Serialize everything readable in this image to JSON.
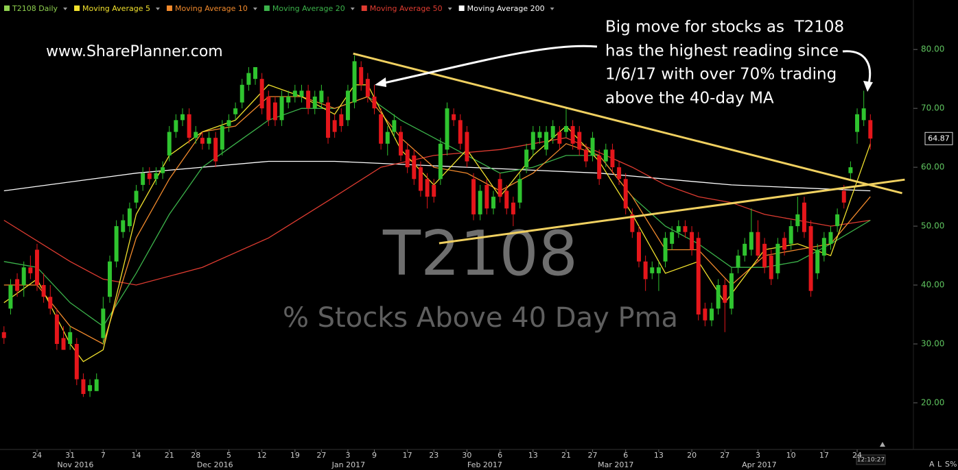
{
  "chart_data": {
    "type": "candlestick",
    "title": "T2108",
    "subtitle": "% Stocks Above 40 Day Pma",
    "website": "www.SharePlanner.com",
    "annotation": [
      "Big move for stocks as  T2108",
      "has the highest reading since",
      "1/6/17 with over 70% trading",
      "above the 40-day MA"
    ],
    "name": "T2108 Daily",
    "color": "#8fd14f",
    "up_color": "#2fc42f",
    "down_color": "#e5161b",
    "candles": [
      [
        32,
        33,
        30,
        31
      ],
      [
        36,
        41,
        35,
        40
      ],
      [
        41,
        42,
        38,
        39
      ],
      [
        40,
        44,
        38,
        43
      ],
      [
        43,
        45,
        41,
        42
      ],
      [
        46,
        47,
        39,
        40
      ],
      [
        40,
        42,
        37,
        38
      ],
      [
        38,
        40,
        35,
        36
      ],
      [
        35,
        36,
        29,
        30
      ],
      [
        31,
        33,
        29,
        29
      ],
      [
        30,
        33,
        29,
        32
      ],
      [
        30,
        31,
        23,
        24
      ],
      [
        24,
        25,
        21,
        21.5
      ],
      [
        22,
        24,
        21,
        23
      ],
      [
        22,
        25,
        22,
        24
      ],
      [
        31,
        38,
        30,
        36
      ],
      [
        38,
        45,
        37,
        44
      ],
      [
        44,
        51,
        43,
        50
      ],
      [
        49,
        52,
        48,
        51
      ],
      [
        50,
        54,
        49,
        53
      ],
      [
        54,
        57,
        53,
        56
      ],
      [
        57,
        60,
        56,
        59
      ],
      [
        59,
        60,
        57,
        58
      ],
      [
        58,
        60,
        57,
        59
      ],
      [
        59,
        61,
        58,
        60
      ],
      [
        62,
        67,
        61,
        66
      ],
      [
        66,
        69,
        65,
        68
      ],
      [
        68,
        70,
        67,
        69
      ],
      [
        69,
        70,
        64,
        65
      ],
      [
        65,
        67,
        64,
        66
      ],
      [
        65,
        66,
        63,
        64
      ],
      [
        64,
        66,
        63,
        65
      ],
      [
        65,
        66,
        60,
        61
      ],
      [
        63,
        68,
        62,
        67
      ],
      [
        67,
        69,
        66,
        68
      ],
      [
        69,
        71,
        68,
        70
      ],
      [
        71,
        75,
        70,
        74
      ],
      [
        74,
        77,
        73,
        76
      ],
      [
        75,
        77,
        74,
        77
      ],
      [
        75,
        76,
        69,
        70
      ],
      [
        72,
        73,
        67,
        68
      ],
      [
        71,
        72,
        67,
        68
      ],
      [
        68,
        73,
        67,
        72
      ],
      [
        71,
        73,
        70,
        72
      ],
      [
        72,
        74,
        71,
        73
      ],
      [
        72,
        74,
        71,
        73
      ],
      [
        73,
        74,
        69,
        70
      ],
      [
        70,
        73,
        69,
        72
      ],
      [
        71,
        74,
        70,
        73
      ],
      [
        71,
        72,
        64,
        65
      ],
      [
        68,
        69,
        65,
        66
      ],
      [
        69,
        70,
        66,
        67
      ],
      [
        68,
        74,
        67,
        73
      ],
      [
        71,
        79,
        70,
        78
      ],
      [
        77,
        78,
        73,
        74
      ],
      [
        75,
        76,
        71,
        72
      ],
      [
        72,
        74,
        69,
        70
      ],
      [
        69,
        70,
        63,
        64
      ],
      [
        64,
        67,
        62,
        66
      ],
      [
        66,
        69,
        65,
        68
      ],
      [
        66,
        67,
        61,
        62
      ],
      [
        63,
        64,
        59,
        60
      ],
      [
        62,
        63,
        57,
        58
      ],
      [
        60,
        61,
        55,
        56
      ],
      [
        58,
        59,
        53,
        55
      ],
      [
        57,
        58,
        54,
        55
      ],
      [
        58,
        65,
        57,
        64
      ],
      [
        63,
        71,
        62,
        70
      ],
      [
        69,
        70,
        67,
        68
      ],
      [
        68,
        69,
        63,
        64
      ],
      [
        66,
        67,
        60,
        61
      ],
      [
        58,
        59,
        51,
        52
      ],
      [
        52,
        57,
        51,
        56
      ],
      [
        57,
        58,
        52,
        53
      ],
      [
        53,
        56,
        52,
        55
      ],
      [
        58,
        59,
        54,
        55
      ],
      [
        56,
        57,
        52,
        53
      ],
      [
        54,
        55,
        50,
        52
      ],
      [
        54,
        59,
        53,
        58
      ],
      [
        60,
        64,
        59,
        63
      ],
      [
        63,
        67,
        62,
        66
      ],
      [
        65,
        67,
        64,
        66
      ],
      [
        63,
        67,
        62,
        66
      ],
      [
        65,
        68,
        64,
        67
      ],
      [
        66,
        67,
        63,
        64
      ],
      [
        66,
        70,
        65,
        67
      ],
      [
        67,
        68,
        63,
        64
      ],
      [
        66,
        67,
        62,
        63
      ],
      [
        63,
        64,
        60,
        61
      ],
      [
        62,
        66,
        61,
        65
      ],
      [
        62,
        63,
        57,
        58
      ],
      [
        61,
        64,
        60,
        63
      ],
      [
        63,
        64,
        59,
        60
      ],
      [
        60,
        61,
        57,
        58
      ],
      [
        58,
        59,
        52,
        53
      ],
      [
        52,
        53,
        48,
        49
      ],
      [
        49,
        50,
        43,
        44
      ],
      [
        44,
        45,
        39,
        41
      ],
      [
        42,
        44,
        41,
        43
      ],
      [
        42,
        44,
        39,
        43
      ],
      [
        44,
        49,
        43,
        48
      ],
      [
        47,
        50,
        46,
        49
      ],
      [
        49,
        51,
        48,
        50
      ],
      [
        50,
        51,
        48,
        49
      ],
      [
        49,
        50,
        45,
        46
      ],
      [
        48,
        49,
        34,
        35
      ],
      [
        36,
        37,
        33,
        34
      ],
      [
        34,
        37,
        33,
        36
      ],
      [
        36,
        41,
        35,
        40
      ],
      [
        40,
        41,
        32,
        37
      ],
      [
        36,
        43,
        35,
        42
      ],
      [
        43,
        46,
        42,
        45
      ],
      [
        45,
        48,
        44,
        47
      ],
      [
        46,
        53,
        45,
        49
      ],
      [
        49,
        51,
        44,
        45
      ],
      [
        47,
        48,
        42,
        43
      ],
      [
        45,
        46,
        40,
        41
      ],
      [
        42,
        48,
        41,
        47
      ],
      [
        48,
        49,
        45,
        46
      ],
      [
        47,
        51,
        46,
        50
      ],
      [
        50,
        55,
        49,
        52
      ],
      [
        54,
        55,
        48,
        49
      ],
      [
        50,
        51,
        38,
        39
      ],
      [
        42,
        47,
        41,
        46
      ],
      [
        45,
        49,
        44,
        48
      ],
      [
        47,
        50,
        46,
        49
      ],
      [
        50,
        53,
        49,
        52
      ],
      [
        56,
        57,
        53,
        54
      ],
      [
        59,
        61,
        58,
        60
      ],
      [
        66,
        70,
        64,
        69
      ],
      [
        68,
        73,
        67,
        70
      ],
      [
        68,
        69,
        63,
        64.87
      ]
    ],
    "series": [
      {
        "name": "Moving Average 5",
        "color": "#f2e22d",
        "x": [
          0,
          5,
          10,
          12,
          15,
          20,
          25,
          30,
          35,
          40,
          45,
          50,
          53,
          55,
          60,
          65,
          70,
          75,
          80,
          85,
          90,
          95,
          100,
          105,
          109,
          115,
          120,
          125,
          131
        ],
        "values": [
          37,
          41,
          30,
          27,
          29,
          52,
          62,
          66,
          68,
          74,
          72,
          69,
          74,
          74,
          63,
          57,
          63,
          55,
          62,
          67,
          61,
          52,
          42,
          44,
          37,
          46,
          47,
          45,
          64
        ]
      },
      {
        "name": "Moving Average 10",
        "color": "#f28a2c",
        "x": [
          0,
          5,
          10,
          15,
          20,
          25,
          30,
          35,
          40,
          45,
          50,
          55,
          60,
          65,
          70,
          75,
          80,
          85,
          90,
          95,
          100,
          105,
          110,
          115,
          120,
          125,
          131
        ],
        "values": [
          40,
          40,
          33,
          30,
          48,
          58,
          66,
          67,
          72,
          72,
          70,
          72,
          65,
          60,
          59,
          56,
          59,
          64,
          62,
          55,
          46,
          46,
          40,
          45,
          46,
          47,
          55
        ]
      },
      {
        "name": "Moving Average 20",
        "color": "#3cb44b",
        "x": [
          0,
          5,
          10,
          15,
          20,
          25,
          30,
          35,
          40,
          45,
          50,
          55,
          60,
          65,
          70,
          75,
          80,
          85,
          90,
          95,
          100,
          105,
          110,
          115,
          120,
          125,
          131
        ],
        "values": [
          44,
          43,
          37,
          33,
          42,
          52,
          60,
          64,
          68,
          70,
          70,
          72,
          68,
          65,
          62,
          59,
          60,
          62,
          62,
          55,
          50,
          47,
          43,
          43,
          44,
          47,
          51
        ]
      },
      {
        "name": "Moving Average 50",
        "color": "#e03c31",
        "x": [
          0,
          10,
          15,
          20,
          30,
          40,
          50,
          57,
          65,
          75,
          85,
          95,
          100,
          105,
          110,
          115,
          120,
          125,
          131
        ],
        "values": [
          51,
          44,
          41,
          40,
          43,
          48,
          55,
          60,
          62,
          63,
          65,
          60,
          57,
          55,
          54,
          52,
          51,
          50,
          51
        ]
      },
      {
        "name": "Moving Average 200",
        "color": "#ffffff",
        "x": [
          0,
          20,
          40,
          50,
          70,
          90,
          110,
          131
        ],
        "values": [
          56,
          59,
          61,
          61,
          60,
          59,
          57,
          56
        ]
      }
    ],
    "trendlines": [
      {
        "color": "#f0d060",
        "x": [
          52.8,
          135.8
        ],
        "values": [
          79.3,
          55.6
        ]
      },
      {
        "color": "#f0d060",
        "x": [
          65.8,
          136.2
        ],
        "values": [
          47.1,
          57.9
        ]
      }
    ],
    "xlim": [
      -0.6,
      137.4
    ],
    "ylim": [
      12.2,
      88.4
    ],
    "yticks": [
      {
        "value": 20,
        "label": "20.00"
      },
      {
        "value": 30,
        "label": "30.00"
      },
      {
        "value": 40,
        "label": "40.00"
      },
      {
        "value": 50,
        "label": "50.00"
      },
      {
        "value": 60,
        "label": "60.00"
      },
      {
        "value": 70,
        "label": "70.00"
      },
      {
        "value": 80,
        "label": "80.00"
      }
    ],
    "xticks": [
      {
        "value": 5,
        "label": "24"
      },
      {
        "value": 10,
        "label": "31"
      },
      {
        "value": 15,
        "label": "7"
      },
      {
        "value": 20,
        "label": "14"
      },
      {
        "value": 25,
        "label": "21"
      },
      {
        "value": 29,
        "label": "28"
      },
      {
        "value": 34,
        "label": "5"
      },
      {
        "value": 39,
        "label": "12"
      },
      {
        "value": 44,
        "label": "19"
      },
      {
        "value": 48,
        "label": "27"
      },
      {
        "value": 52,
        "label": "3"
      },
      {
        "value": 56,
        "label": "9"
      },
      {
        "value": 61,
        "label": "17"
      },
      {
        "value": 65,
        "label": "23"
      },
      {
        "value": 70,
        "label": "30"
      },
      {
        "value": 75,
        "label": "6"
      },
      {
        "value": 80,
        "label": "13"
      },
      {
        "value": 85,
        "label": "21"
      },
      {
        "value": 89,
        "label": "27"
      },
      {
        "value": 94,
        "label": "6"
      },
      {
        "value": 99,
        "label": "13"
      },
      {
        "value": 104,
        "label": "20"
      },
      {
        "value": 109,
        "label": "27"
      },
      {
        "value": 114,
        "label": "3"
      },
      {
        "value": 119,
        "label": "10"
      },
      {
        "value": 124,
        "label": "17"
      },
      {
        "value": 129,
        "label": "24"
      }
    ],
    "month_ticks": [
      {
        "value": 10.8,
        "label": "Nov 2016"
      },
      {
        "value": 31.9,
        "label": "Dec 2016"
      },
      {
        "value": 52.1,
        "label": "Jan 2017"
      },
      {
        "value": 72.7,
        "label": "Feb 2017"
      },
      {
        "value": 92.5,
        "label": "Mar 2017"
      },
      {
        "value": 114.2,
        "label": "Apr 2017"
      }
    ],
    "last_price": 64.87,
    "time": "12:10:27",
    "toolbar": [
      "A",
      "L",
      "S%"
    ]
  }
}
